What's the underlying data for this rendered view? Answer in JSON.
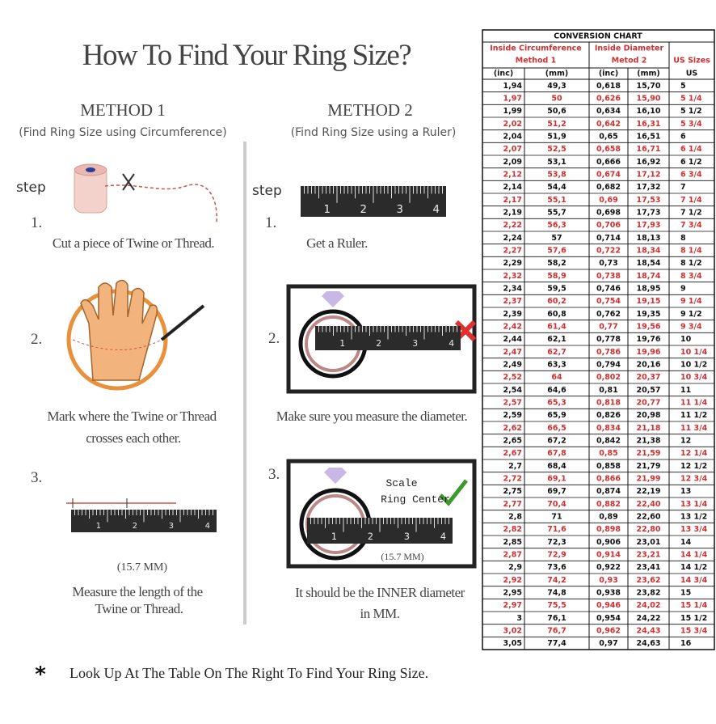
{
  "header": {
    "title": "How To Find Your Ring Size?"
  },
  "methods": [
    {
      "title": "METHOD 1",
      "subtitle": "(Find Ring Size using Circumference)",
      "step_label": "step",
      "steps": [
        {
          "number": "1.",
          "text": [
            "Cut a piece of Twine or Thread."
          ]
        },
        {
          "number": "2.",
          "text": [
            "Mark where the Twine or Thread",
            "crosses each other."
          ]
        },
        {
          "number": "3.",
          "measurement": "(15.7 MM)",
          "text": [
            "Measure the length of the",
            "Twine or Thread."
          ]
        }
      ]
    },
    {
      "title": "METHOD 2",
      "subtitle": "(Find Ring Size using a Ruler)",
      "step_label": "step",
      "steps": [
        {
          "number": "1.",
          "text": [
            "Get a Ruler."
          ]
        },
        {
          "number": "2.",
          "text": [
            "Make sure you measure the diameter."
          ]
        },
        {
          "number": "3.",
          "measurement": "(15.7 MM)",
          "scale_label": "Scale",
          "center_label": "Ring Center",
          "text": [
            "It should be the INNER diameter",
            "in MM."
          ]
        }
      ]
    }
  ],
  "ruler_labels": [
    "1",
    "2",
    "3",
    "4"
  ],
  "footnote": {
    "symbol": "*",
    "text": "Look Up At The Table On The Right To Find Your Ring Size."
  },
  "table": {
    "title": "CONVERSION CHART",
    "groups": [
      [
        "Inside Circumference",
        "Method 1"
      ],
      [
        "Inside Diameter",
        "Metod 2"
      ],
      [
        "US Sizes"
      ]
    ],
    "units": [
      "(inc)",
      "(mm)",
      "(inc)",
      "(mm)",
      "US"
    ],
    "rows": [
      [
        "1,94",
        "49,3",
        "0,618",
        "15,70",
        "5"
      ],
      [
        "1,97",
        "50",
        "0,626",
        "15,90",
        "5 1/4"
      ],
      [
        "1,99",
        "50,6",
        "0,634",
        "16,10",
        "5 1/2"
      ],
      [
        "2,02",
        "51,2",
        "0,642",
        "16,31",
        "5 3/4"
      ],
      [
        "2,04",
        "51,9",
        "0,65",
        "16,51",
        "6"
      ],
      [
        "2,07",
        "52,5",
        "0,658",
        "16,71",
        "6 1/4"
      ],
      [
        "2,09",
        "53,1",
        "0,666",
        "16,92",
        "6 1/2"
      ],
      [
        "2,12",
        "53,8",
        "0,674",
        "17,12",
        "6 3/4"
      ],
      [
        "2,14",
        "54,4",
        "0,682",
        "17,32",
        "7"
      ],
      [
        "2,17",
        "55,1",
        "0,69",
        "17,53",
        "7 1/4"
      ],
      [
        "2,19",
        "55,7",
        "0,698",
        "17,73",
        "7 1/2"
      ],
      [
        "2,22",
        "56,3",
        "0,706",
        "17,93",
        "7 3/4"
      ],
      [
        "2,24",
        "57",
        "0,714",
        "18,13",
        "8"
      ],
      [
        "2,27",
        "57,6",
        "0,722",
        "18,34",
        "8 1/4"
      ],
      [
        "2,29",
        "58,2",
        "0,73",
        "18,54",
        "8 1/2"
      ],
      [
        "2,32",
        "58,9",
        "0,738",
        "18,74",
        "8 3/4"
      ],
      [
        "2,34",
        "59,5",
        "0,746",
        "18,95",
        "9"
      ],
      [
        "2,37",
        "60,2",
        "0,754",
        "19,15",
        "9 1/4"
      ],
      [
        "2,39",
        "60,8",
        "0,762",
        "19,35",
        "9 1/2"
      ],
      [
        "2,42",
        "61,4",
        "0,77",
        "19,56",
        "9 3/4"
      ],
      [
        "2,44",
        "62,1",
        "0,778",
        "19,76",
        "10"
      ],
      [
        "2,47",
        "62,7",
        "0,786",
        "19,96",
        "10 1/4"
      ],
      [
        "2,49",
        "63,3",
        "0,794",
        "20,16",
        "10 1/2"
      ],
      [
        "2,52",
        "64",
        "0,802",
        "20,37",
        "10 3/4"
      ],
      [
        "2,54",
        "64,6",
        "0,81",
        "20,57",
        "11"
      ],
      [
        "2,57",
        "65,3",
        "0,818",
        "20,77",
        "11 1/4"
      ],
      [
        "2,59",
        "65,9",
        "0,826",
        "20,98",
        "11 1/2"
      ],
      [
        "2,62",
        "66,5",
        "0,834",
        "21,18",
        "11 3/4"
      ],
      [
        "2,65",
        "67,2",
        "0,842",
        "21,38",
        "12"
      ],
      [
        "2,67",
        "67,8",
        "0,85",
        "21,59",
        "12 1/4"
      ],
      [
        "2,7",
        "68,4",
        "0,858",
        "21,79",
        "12 1/2"
      ],
      [
        "2,72",
        "69,1",
        "0,866",
        "21,99",
        "12 3/4"
      ],
      [
        "2,75",
        "69,7",
        "0,874",
        "22,19",
        "13"
      ],
      [
        "2,77",
        "70,4",
        "0,882",
        "22,40",
        "13 1/4"
      ],
      [
        "2,8",
        "71",
        "0,89",
        "22,60",
        "13 1/2"
      ],
      [
        "2,82",
        "71,6",
        "0,898",
        "22,80",
        "13 3/4"
      ],
      [
        "2,85",
        "72,3",
        "0,906",
        "23,01",
        "14"
      ],
      [
        "2,87",
        "72,9",
        "0,914",
        "23,21",
        "14 1/4"
      ],
      [
        "2,9",
        "73,6",
        "0,922",
        "23,41",
        "14 1/2"
      ],
      [
        "2,92",
        "74,2",
        "0,93",
        "23,62",
        "14 3/4"
      ],
      [
        "2,95",
        "74,8",
        "0,938",
        "23,82",
        "15"
      ],
      [
        "2,97",
        "75,5",
        "0,946",
        "24,02",
        "15 1/4"
      ],
      [
        "3",
        "76,1",
        "0,954",
        "24,22",
        "15 1/2"
      ],
      [
        "3,02",
        "76,7",
        "0,962",
        "24,43",
        "15 3/4"
      ],
      [
        "3,05",
        "77,4",
        "0,97",
        "24,63",
        "16"
      ]
    ]
  }
}
